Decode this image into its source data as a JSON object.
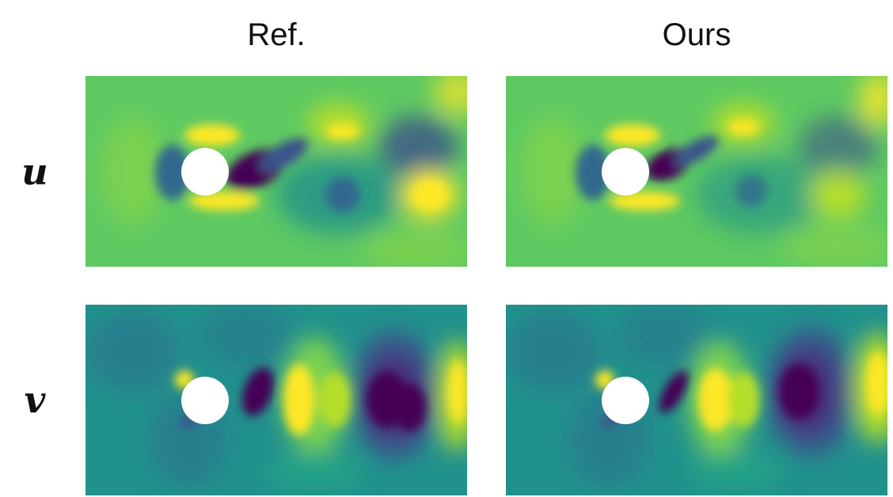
{
  "columns": [
    "Ref.",
    "Ours"
  ],
  "rows": [
    "u",
    "v"
  ],
  "colormap": [
    "#440154",
    "#3b528b",
    "#21918c",
    "#5ec962",
    "#fde725"
  ]
}
